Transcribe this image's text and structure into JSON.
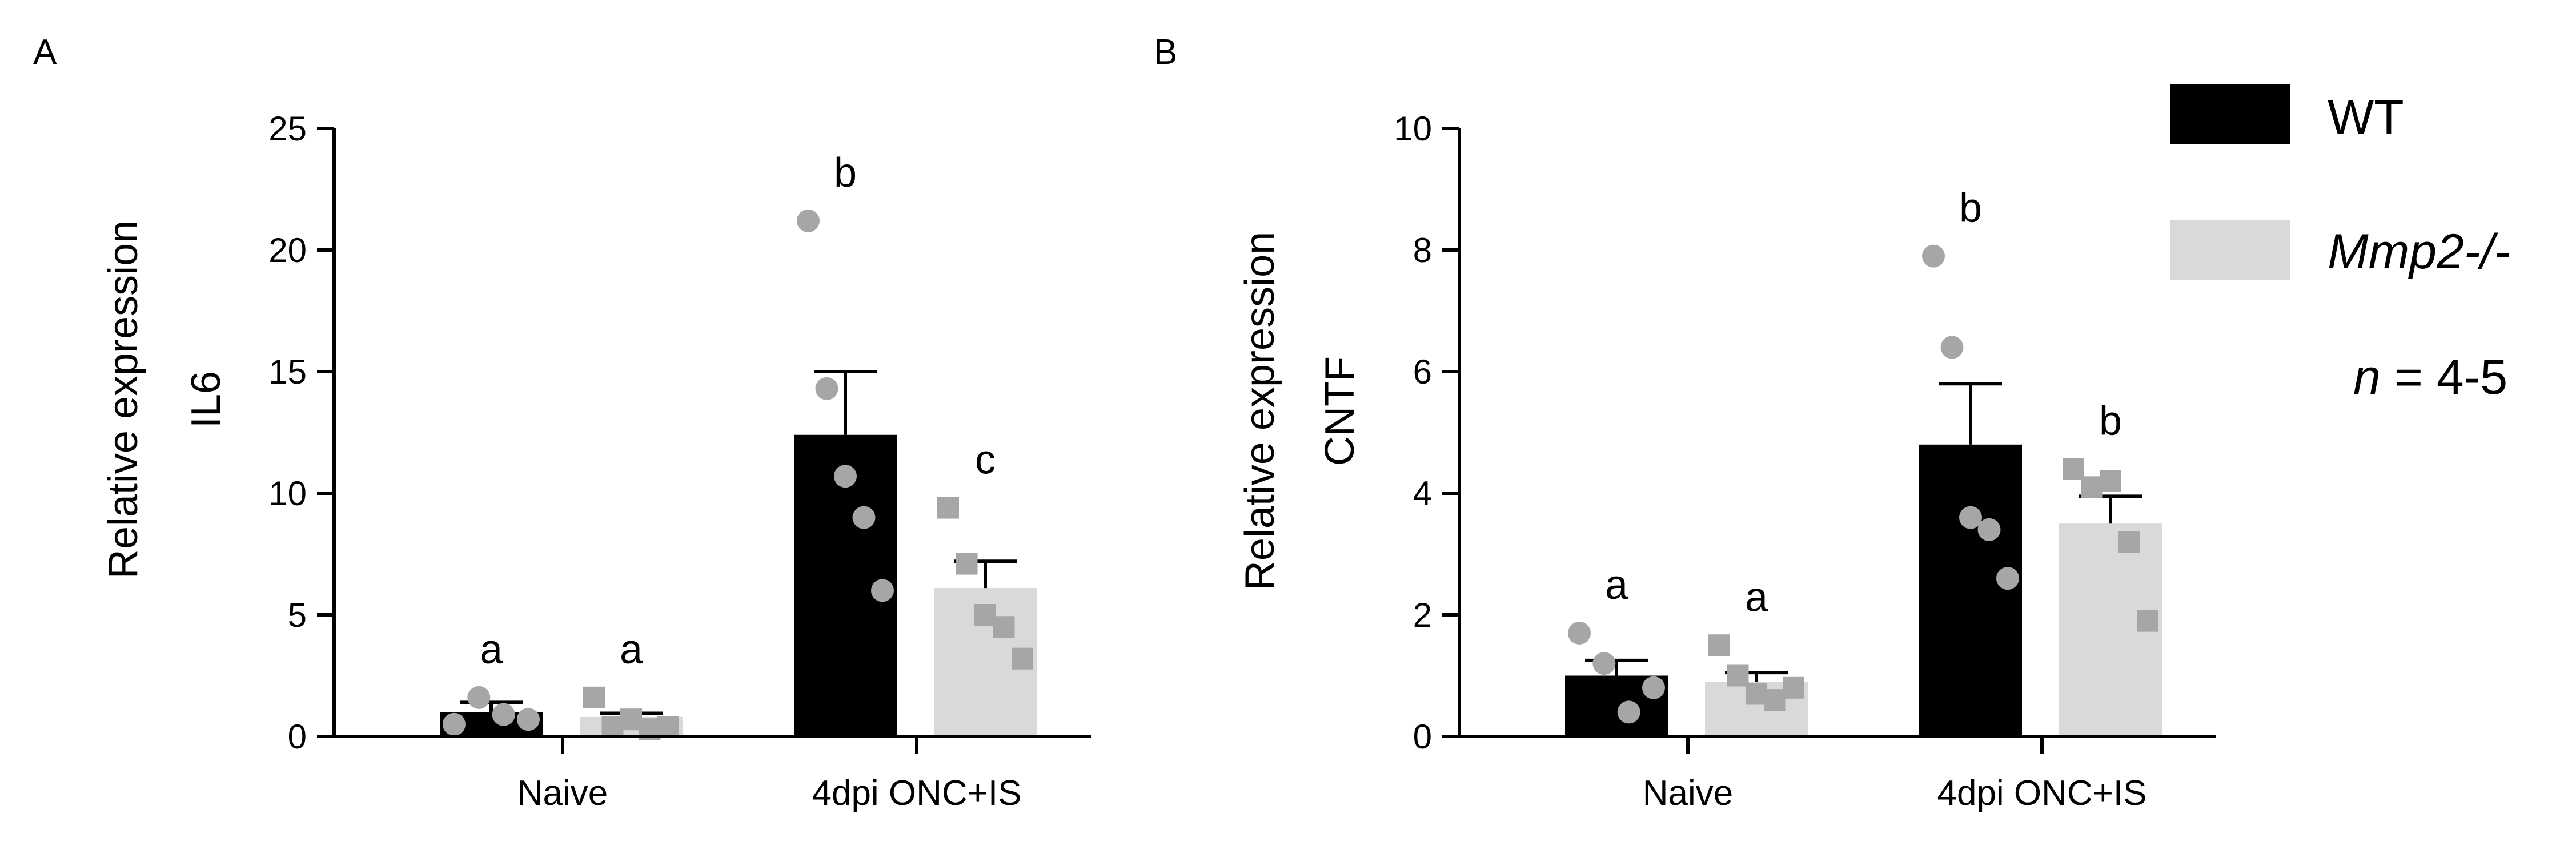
{
  "chart_data": [
    {
      "type": "bar",
      "panel_label": "A",
      "categories": [
        "Naive",
        "4dpi ONC+IS"
      ],
      "ylabel": [
        "Relative expression",
        "IL6"
      ],
      "ylim": [
        0,
        25
      ],
      "yticks": [
        0,
        5,
        10,
        15,
        20,
        25
      ],
      "series": [
        {
          "name": "WT",
          "color": "#000000",
          "values": [
            1.0,
            12.4
          ],
          "sem": [
            0.4,
            2.6
          ],
          "points": [
            [
              0.5,
              1.6,
              0.9,
              0.7
            ],
            [
              21.2,
              14.3,
              10.7,
              9.0,
              6.0
            ]
          ],
          "marker": "circle"
        },
        {
          "name": "Mmp2-/-",
          "color": "#d9d9d9",
          "values": [
            0.8,
            6.1
          ],
          "sem": [
            0.15,
            1.1
          ],
          "points": [
            [
              1.6,
              0.4,
              0.7,
              0.3,
              0.4
            ],
            [
              9.4,
              7.1,
              5.0,
              4.5,
              3.2
            ]
          ],
          "marker": "square"
        }
      ],
      "significance": [
        [
          "a",
          "a"
        ],
        [
          "b",
          "c"
        ]
      ]
    },
    {
      "type": "bar",
      "panel_label": "B",
      "categories": [
        "Naive",
        "4dpi ONC+IS"
      ],
      "ylabel": [
        "Relative expression",
        "CNTF"
      ],
      "ylim": [
        0,
        10
      ],
      "yticks": [
        0,
        2,
        4,
        6,
        8,
        10
      ],
      "series": [
        {
          "name": "WT",
          "color": "#000000",
          "values": [
            1.0,
            4.8
          ],
          "sem": [
            0.25,
            1.0
          ],
          "points": [
            [
              1.7,
              1.2,
              0.4,
              0.8
            ],
            [
              7.9,
              6.4,
              3.6,
              3.4,
              2.6
            ]
          ],
          "marker": "circle"
        },
        {
          "name": "Mmp2-/-",
          "color": "#d9d9d9",
          "values": [
            0.9,
            3.5
          ],
          "sem": [
            0.15,
            0.45
          ],
          "points": [
            [
              1.5,
              1.0,
              0.7,
              0.6,
              0.8
            ],
            [
              4.4,
              4.1,
              4.2,
              3.2,
              1.9
            ]
          ],
          "marker": "square"
        }
      ],
      "significance": [
        [
          "a",
          "a"
        ],
        [
          "b",
          "b"
        ]
      ]
    }
  ],
  "legend": {
    "items": [
      {
        "label": "WT",
        "color": "#000000",
        "italic": false
      },
      {
        "label": "Mmp2-/-",
        "color": "#d9d9d9",
        "italic": true
      }
    ],
    "n_italic": "n",
    "n_rest": " = 4-5"
  },
  "point_color": "#a6a6a6"
}
